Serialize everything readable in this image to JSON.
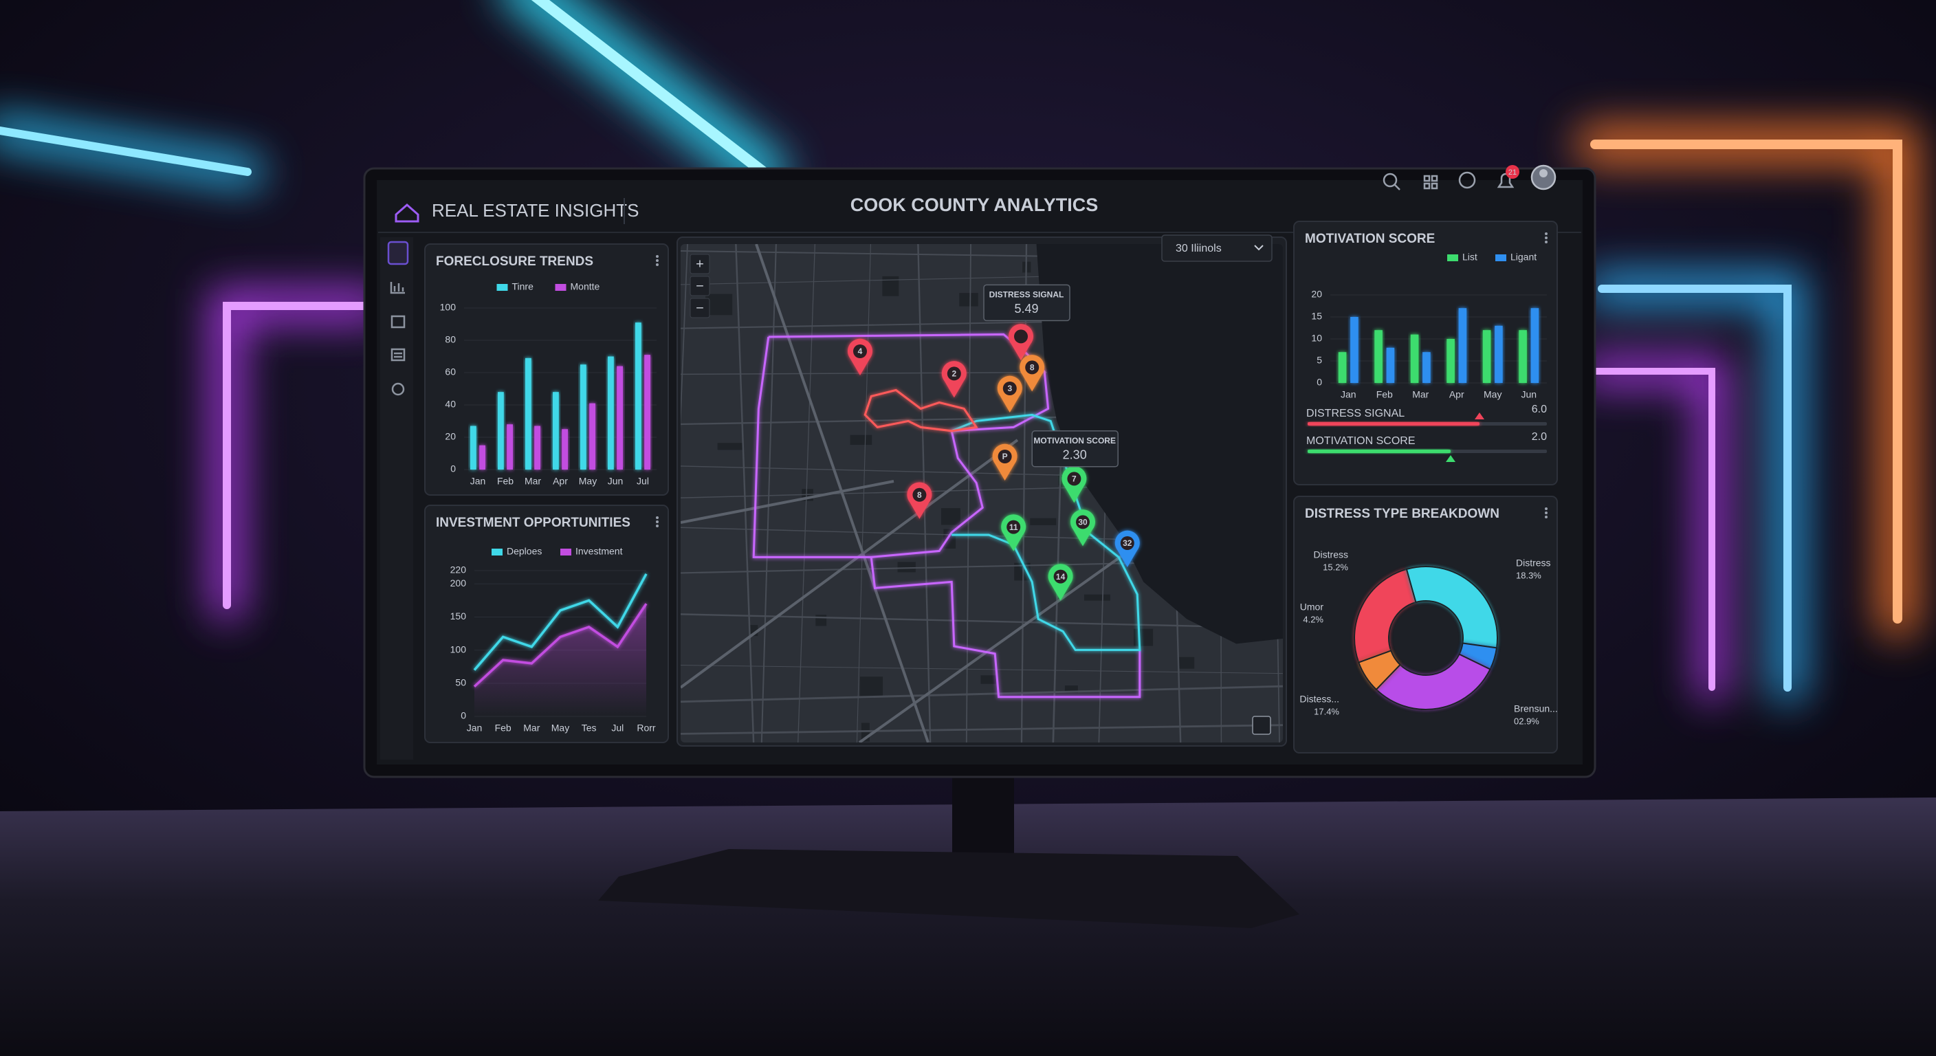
{
  "header": {
    "brand": "REAL ESTATE INSIGHTS",
    "title": "COOK COUNTY ANALYTICS",
    "notifications": "21"
  },
  "foreclosure_trends": {
    "type": "bar",
    "title": "FORECLOSURE TRENDS",
    "categories": [
      "Jan",
      "Feb",
      "Mar",
      "Apr",
      "May",
      "Jun",
      "Jul"
    ],
    "series": [
      {
        "name": "Tinre",
        "color": "#3fd8e8",
        "values": [
          27,
          48,
          69,
          48,
          65,
          70,
          91
        ]
      },
      {
        "name": "Montte",
        "color": "#c24de0",
        "values": [
          15,
          28,
          27,
          25,
          41,
          64,
          71
        ]
      }
    ],
    "ylim": [
      0,
      100
    ],
    "yticks": [
      0,
      20,
      40,
      60,
      80,
      100
    ]
  },
  "investment_opportunities": {
    "type": "line",
    "title": "INVESTMENT OPPORTUNITIES",
    "categories": [
      "Jan",
      "Feb",
      "Mar",
      "May",
      "Tes",
      "Jul",
      "Rorr"
    ],
    "series": [
      {
        "name": "Deploes",
        "color": "#3fd8e8",
        "values": [
          70,
          120,
          105,
          160,
          175,
          135,
          215
        ]
      },
      {
        "name": "Investment",
        "color": "#c24de0",
        "values": [
          45,
          85,
          80,
          120,
          135,
          105,
          170
        ]
      }
    ],
    "ylim": [
      0,
      220
    ],
    "yticks": [
      0,
      50,
      100,
      150,
      200,
      220
    ]
  },
  "map": {
    "region_select": "30 Iliinols",
    "zoom_controls": [
      "+",
      "−",
      "−"
    ],
    "pins": [
      "4",
      "2",
      "8",
      "3",
      "P",
      "8",
      "7",
      "11",
      "30",
      "14",
      "32"
    ],
    "tooltips": [
      {
        "label": "DISTRESS SIGNAL",
        "value": "5.49"
      },
      {
        "label": "MOTIVATION SCORE",
        "value": "2.30"
      }
    ]
  },
  "motivation_score": {
    "type": "bar",
    "title": "MOTIVATION SCORE",
    "categories": [
      "Jan",
      "Feb",
      "Mar",
      "Apr",
      "May",
      "Jun"
    ],
    "series": [
      {
        "name": "List",
        "color": "#3ddc6e",
        "values": [
          7,
          12,
          11,
          10,
          12,
          12
        ]
      },
      {
        "name": "Ligant",
        "color": "#2f8ff0",
        "values": [
          15,
          8,
          7,
          17,
          13,
          17
        ]
      }
    ],
    "ylim": [
      0,
      20
    ],
    "yticks": [
      0,
      5,
      10,
      15,
      20
    ],
    "sliders": [
      {
        "label": "DISTRESS SIGNAL",
        "value": "6.0"
      },
      {
        "label": "MOTIVATION SCORE",
        "value": "2.0"
      }
    ]
  },
  "distress_breakdown": {
    "type": "pie",
    "title": "DISTRESS TYPE BREAKDOWN",
    "categories": [
      "Distress",
      "Distress",
      "Brensun...",
      "Distess...",
      "Umor"
    ],
    "values": [
      15.2,
      18.3,
      2.9,
      17.4,
      4.2
    ],
    "value_labels": [
      "15.2%",
      "18.3%",
      "02.9%",
      "17.4%",
      "4.2%"
    ],
    "colors": [
      "#f0445a",
      "#3fd8e8",
      "#2f8ff0",
      "#b84de8",
      "#f08a3a"
    ]
  }
}
